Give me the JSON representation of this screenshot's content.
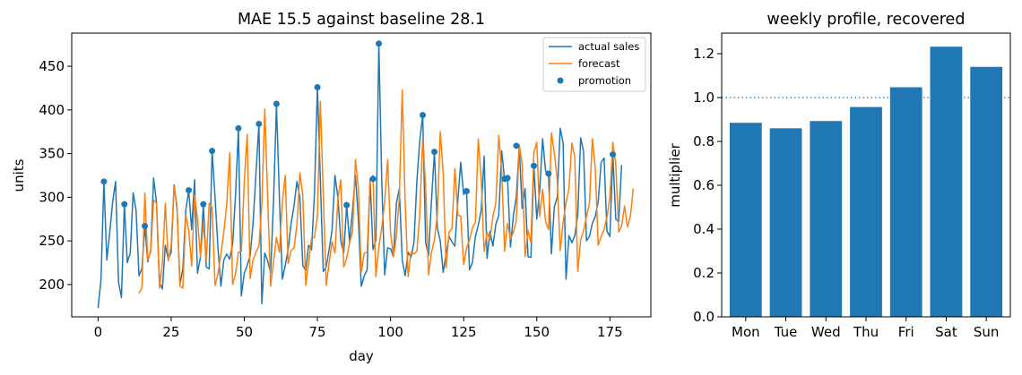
{
  "chart_data": [
    {
      "type": "line",
      "title": "MAE 15.5 against baseline 28.1",
      "xlabel": "day",
      "ylabel": "units",
      "xlim": [
        -9,
        189
      ],
      "ylim": [
        163,
        488
      ],
      "grid": false,
      "legend_position": "top-right",
      "x_ticks": [
        0,
        25,
        50,
        75,
        100,
        125,
        150,
        175
      ],
      "y_ticks": [
        200,
        250,
        300,
        350,
        400,
        450
      ],
      "colors": {
        "actual": "#1f77b4",
        "forecast": "#ff7f0e",
        "promotion": "#1f77b4"
      },
      "series": [
        {
          "name": "actual sales",
          "kind": "line",
          "x_start": 0,
          "values": [
            173,
            205,
            318,
            228,
            260,
            295,
            318,
            203,
            185,
            292,
            225,
            236,
            305,
            285,
            210,
            218,
            267,
            226,
            239,
            322,
            294,
            202,
            195,
            245,
            229,
            237,
            314,
            287,
            200,
            218,
            285,
            308,
            263,
            320,
            213,
            231,
            292,
            220,
            218,
            353,
            300,
            242,
            198,
            228,
            235,
            229,
            246,
            302,
            378,
            187,
            213,
            222,
            233,
            270,
            328,
            384,
            178,
            236,
            227,
            213,
            296,
            406,
            300,
            206,
            222,
            240,
            270,
            290,
            318,
            300,
            222,
            216,
            245,
            240,
            305,
            426,
            320,
            215,
            220,
            240,
            262,
            325,
            300,
            250,
            236,
            291,
            249,
            285,
            325,
            275,
            198,
            210,
            217,
            321,
            240,
            251,
            476,
            318,
            211,
            242,
            241,
            232,
            293,
            310,
            228,
            210,
            237,
            231,
            248,
            318,
            365,
            394,
            248,
            233,
            296,
            352,
            265,
            250,
            214,
            235,
            255,
            249,
            244,
            296,
            340,
            303,
            307,
            217,
            225,
            255,
            268,
            285,
            347,
            230,
            261,
            244,
            269,
            279,
            353,
            320,
            322,
            243,
            279,
            300,
            358,
            287,
            310,
            232,
            231,
            336,
            275,
            308,
            367,
            330,
            326,
            235,
            289,
            300,
            379,
            362,
            206,
            256,
            248,
            256,
            280,
            368,
            352,
            250,
            255,
            270,
            278,
            295,
            340,
            345,
            261,
            255,
            349,
            275,
            272,
            337
          ]
        },
        {
          "name": "forecast",
          "kind": "line",
          "x_start": 14,
          "values": [
            190,
            196,
            305,
            228,
            237,
            297,
            293,
            196,
            225,
            293,
            227,
            245,
            312,
            290,
            198,
            196,
            280,
            262,
            221,
            303,
            275,
            232,
            270,
            228,
            293,
            288,
            199,
            212,
            235,
            260,
            292,
            351,
            200,
            212,
            237,
            238,
            318,
            372,
            207,
            228,
            237,
            244,
            292,
            401,
            299,
            198,
            226,
            254,
            237,
            294,
            325,
            224,
            239,
            242,
            268,
            328,
            302,
            199,
            225,
            253,
            254,
            279,
            410,
            304,
            199,
            225,
            249,
            236,
            298,
            320,
            220,
            230,
            248,
            260,
            343,
            311,
            214,
            236,
            237,
            318,
            325,
            209,
            243,
            265,
            295,
            343,
            260,
            232,
            255,
            300,
            423,
            294,
            209,
            237,
            235,
            238,
            282,
            368,
            313,
            211,
            237,
            251,
            280,
            375,
            328,
            219,
            260,
            264,
            333,
            280,
            278,
            223,
            242,
            251,
            265,
            271,
            367,
            320,
            238,
            260,
            251,
            278,
            293,
            371,
            330,
            238,
            270,
            252,
            260,
            273,
            360,
            338,
            232,
            262,
            248,
            351,
            363,
            278,
            309,
            272,
            263,
            374,
            351,
            320,
            239,
            272,
            293,
            310,
            362,
            346,
            215,
            251,
            262,
            278,
            293,
            367,
            333,
            245,
            255,
            263,
            277,
            300,
            363,
            338,
            260,
            267,
            290,
            266,
            278,
            310
          ]
        },
        {
          "name": "promotion",
          "kind": "scatter",
          "points": [
            [
              2,
              318
            ],
            [
              9,
              292
            ],
            [
              16,
              267
            ],
            [
              31,
              308
            ],
            [
              36,
              292
            ],
            [
              39,
              353
            ],
            [
              48,
              379
            ],
            [
              55,
              384
            ],
            [
              61,
              407
            ],
            [
              75,
              426
            ],
            [
              85,
              291
            ],
            [
              94,
              321
            ],
            [
              96,
              476
            ],
            [
              111,
              394
            ],
            [
              115,
              352
            ],
            [
              126,
              307
            ],
            [
              139,
              321
            ],
            [
              140,
              322
            ],
            [
              143,
              359
            ],
            [
              149,
              336
            ],
            [
              154,
              327
            ],
            [
              176,
              349
            ]
          ]
        }
      ]
    },
    {
      "type": "bar",
      "title": "weekly profile, recovered",
      "xlabel": "",
      "ylabel": "multiplier",
      "categories": [
        "Mon",
        "Tue",
        "Wed",
        "Thu",
        "Fri",
        "Sat",
        "Sun"
      ],
      "values": [
        0.885,
        0.86,
        0.893,
        0.957,
        1.047,
        1.232,
        1.14
      ],
      "ylim": [
        0,
        1.294
      ],
      "y_ticks": [
        "0.0",
        "0.2",
        "0.4",
        "0.6",
        "0.8",
        "1.0",
        "1.2"
      ],
      "reference_line": 1.0,
      "grid": false,
      "colors": {
        "bar": "#1f77b4",
        "reference": "#1f77b4"
      }
    }
  ]
}
